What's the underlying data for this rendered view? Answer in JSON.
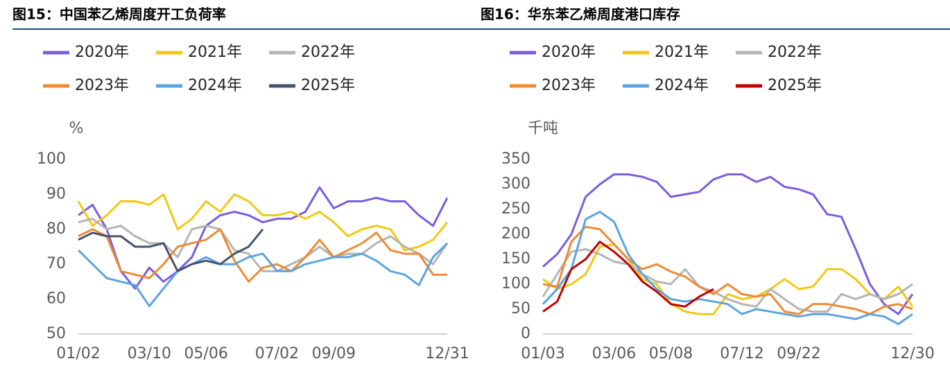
{
  "chart_data": [
    {
      "type": "line",
      "title": "图15：中国苯乙烯周度开工负荷率",
      "y_label": "%",
      "categories": [
        "01/02",
        null,
        null,
        null,
        null,
        "03/10",
        null,
        null,
        null,
        "05/06",
        null,
        null,
        null,
        null,
        "07/02",
        null,
        null,
        null,
        "09/09",
        null,
        null,
        null,
        null,
        null,
        null,
        null,
        "12/31"
      ],
      "ylim": [
        50,
        100
      ],
      "yticks": [
        50,
        60,
        70,
        80,
        90,
        100
      ],
      "series": [
        {
          "name": "2020年",
          "color": "#7a5ce0",
          "values": [
            84,
            87,
            80,
            68,
            63,
            69,
            65,
            68,
            72,
            81,
            84,
            85,
            84,
            82,
            83,
            83,
            85,
            92,
            86,
            88,
            88,
            89,
            88,
            88,
            84,
            81,
            89
          ]
        },
        {
          "name": "2021年",
          "color": "#f2c811",
          "values": [
            88,
            81,
            84,
            88,
            88,
            87,
            90,
            80,
            83,
            88,
            85,
            90,
            88,
            84,
            84,
            85,
            83,
            85,
            82,
            78,
            80,
            81,
            80,
            74,
            75,
            77,
            82
          ]
        },
        {
          "name": "2022年",
          "color": "#b4b4b4",
          "values": [
            82,
            83,
            80,
            81,
            78,
            76,
            76,
            72,
            80,
            81,
            80,
            74,
            73,
            68,
            68,
            70,
            72,
            75,
            72,
            73,
            73,
            76,
            78,
            75,
            73,
            70,
            76
          ]
        },
        {
          "name": "2023年",
          "color": "#ef8a32",
          "values": [
            78,
            80,
            78,
            68,
            67,
            66,
            70,
            75,
            76,
            77,
            80,
            71,
            65,
            69,
            70,
            68,
            72,
            77,
            72,
            74,
            76,
            79,
            74,
            73,
            73,
            67,
            67
          ]
        },
        {
          "name": "2024年",
          "color": "#5aa4df",
          "values": [
            74,
            70,
            66,
            65,
            64,
            58,
            63,
            68,
            70,
            72,
            70,
            70,
            72,
            73,
            68,
            68,
            70,
            71,
            72,
            72,
            73,
            71,
            68,
            67,
            64,
            72,
            76
          ]
        },
        {
          "name": "2025年",
          "color": "#44546a",
          "values": [
            77,
            79,
            78,
            78,
            75,
            75,
            76,
            68,
            70,
            71,
            70,
            73,
            75,
            80,
            null,
            null,
            null,
            null,
            null,
            null,
            null,
            null,
            null,
            null,
            null,
            null,
            null
          ]
        }
      ]
    },
    {
      "type": "line",
      "title": "图16：华东苯乙烯周度港口库存",
      "y_label": "千吨",
      "categories": [
        "01/03",
        null,
        null,
        null,
        null,
        "03/06",
        null,
        null,
        null,
        "05/08",
        null,
        null,
        null,
        null,
        "07/12",
        null,
        null,
        null,
        "09/22",
        null,
        null,
        null,
        null,
        null,
        null,
        null,
        "12/30"
      ],
      "ylim": [
        0,
        350
      ],
      "yticks": [
        0,
        50,
        100,
        150,
        200,
        250,
        300,
        350
      ],
      "series": [
        {
          "name": "2020年",
          "color": "#7a5ce0",
          "values": [
            135,
            160,
            200,
            275,
            300,
            320,
            320,
            315,
            305,
            275,
            280,
            285,
            310,
            320,
            320,
            305,
            315,
            295,
            290,
            280,
            240,
            235,
            170,
            100,
            60,
            40,
            80
          ]
        },
        {
          "name": "2021年",
          "color": "#f2c811",
          "values": [
            110,
            90,
            100,
            120,
            175,
            180,
            150,
            110,
            100,
            60,
            45,
            40,
            40,
            80,
            70,
            75,
            90,
            110,
            90,
            95,
            130,
            130,
            110,
            80,
            70,
            95,
            55
          ]
        },
        {
          "name": "2022年",
          "color": "#b4b4b4",
          "values": [
            75,
            120,
            165,
            170,
            160,
            145,
            140,
            120,
            105,
            100,
            130,
            95,
            85,
            70,
            60,
            55,
            90,
            70,
            50,
            45,
            45,
            80,
            70,
            80,
            70,
            80,
            100
          ]
        },
        {
          "name": "2023年",
          "color": "#ef8a32",
          "values": [
            100,
            95,
            185,
            215,
            210,
            180,
            150,
            130,
            140,
            125,
            115,
            95,
            80,
            100,
            80,
            75,
            80,
            45,
            40,
            60,
            60,
            55,
            50,
            40,
            55,
            60,
            50
          ]
        },
        {
          "name": "2024年",
          "color": "#5aa4df",
          "values": [
            60,
            90,
            130,
            230,
            245,
            225,
            160,
            120,
            90,
            70,
            65,
            70,
            65,
            60,
            40,
            50,
            45,
            40,
            35,
            40,
            40,
            35,
            30,
            40,
            35,
            20,
            40
          ]
        },
        {
          "name": "2025年",
          "color": "#c00000",
          "values": [
            45,
            65,
            130,
            150,
            185,
            165,
            140,
            105,
            85,
            60,
            55,
            75,
            90,
            null,
            null,
            null,
            null,
            null,
            null,
            null,
            null,
            null,
            null,
            null,
            null,
            null,
            null
          ]
        }
      ]
    }
  ]
}
